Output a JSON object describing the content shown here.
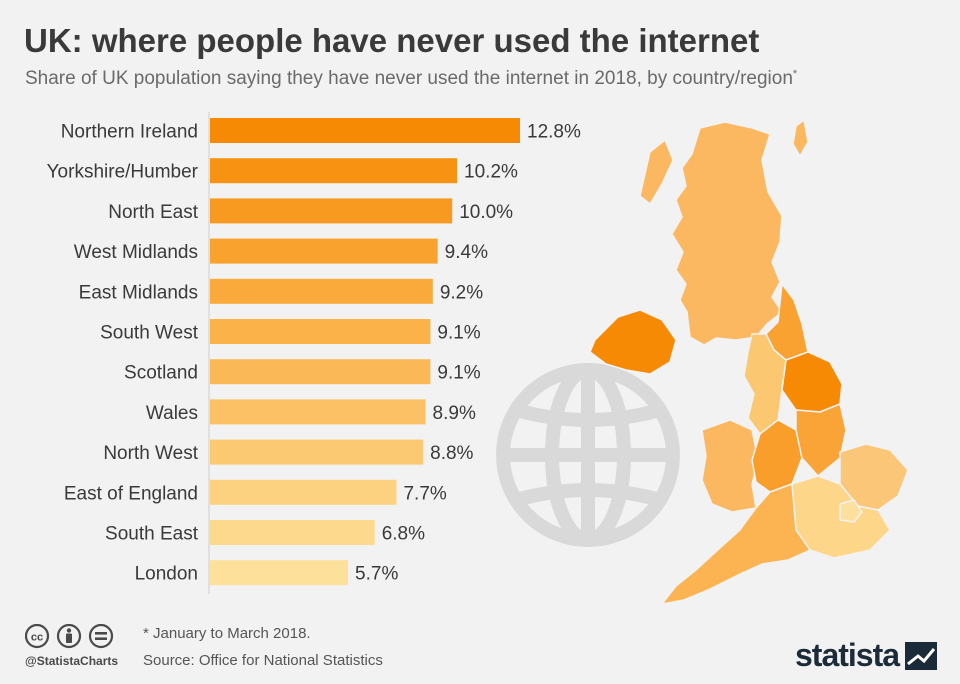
{
  "title": "UK: where people have never used the internet",
  "subtitle": "Share of UK population saying they have never used the internet in 2018, by country/region",
  "subtitle_marker": "*",
  "footnote": "* January to March 2018.",
  "source": "Source: Office for National Statistics",
  "handle": "@StatistaCharts",
  "brand": "statista",
  "colors": {
    "background": "#f2f2f2",
    "bar_dark": "#f78a05",
    "bar_light": "#fde19a",
    "map_light": "#fbb860",
    "map_pale": "#fde09d",
    "globe": "#d9d9d9",
    "text": "#3a3a3a"
  },
  "icons": [
    "creative-commons-icon",
    "attribution-icon",
    "no-derivatives-icon",
    "globe-icon",
    "statista-logo-icon"
  ],
  "chart_data": {
    "type": "bar",
    "orientation": "horizontal",
    "unit": "%",
    "categories": [
      "Northern Ireland",
      "Yorkshire/Humber",
      "North East",
      "West Midlands",
      "East Midlands",
      "South West",
      "Scotland",
      "Wales",
      "North West",
      "East of England",
      "South East",
      "London"
    ],
    "values": [
      12.8,
      10.2,
      10.0,
      9.4,
      9.2,
      9.1,
      9.1,
      8.9,
      8.8,
      7.7,
      6.8,
      5.7
    ],
    "labels": [
      "12.8%",
      "10.2%",
      "10.0%",
      "9.4%",
      "9.2%",
      "9.1%",
      "9.1%",
      "8.9%",
      "8.8%",
      "7.7%",
      "6.8%",
      "5.7%"
    ],
    "xlim": [
      0,
      12.8
    ],
    "grid": false,
    "legend": "none"
  }
}
